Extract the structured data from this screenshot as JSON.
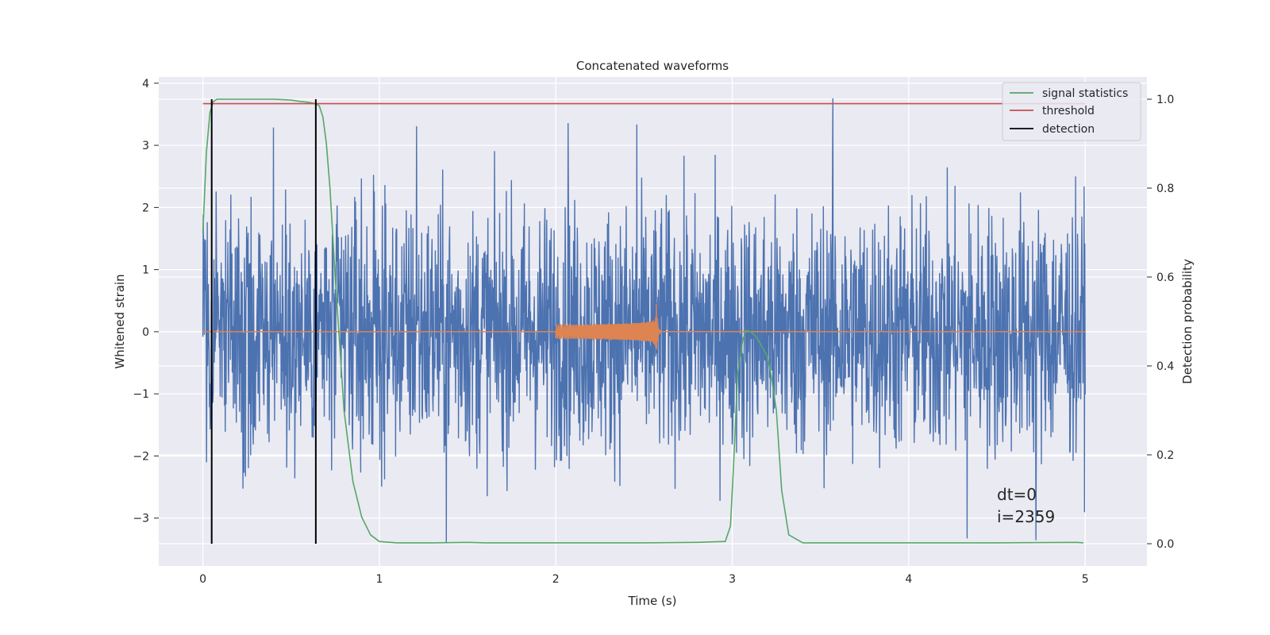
{
  "chart_data": {
    "type": "line",
    "title": "Concatenated waveforms",
    "xlabel": "Time (s)",
    "ylabel": "Whitened strain",
    "y2label": "Detection probability",
    "xlim": [
      -0.25,
      5.35
    ],
    "ylim": [
      -3.77,
      4.1
    ],
    "y2lim": [
      -0.05,
      1.05
    ],
    "xticks": [
      0,
      1,
      2,
      3,
      4,
      5
    ],
    "yticks": [
      -3,
      -2,
      -1,
      0,
      1,
      2,
      3,
      4
    ],
    "y2ticks": [
      0.0,
      0.2,
      0.4,
      0.6,
      0.8,
      1.0
    ],
    "grid": true,
    "legend_position": "top-right",
    "colors": {
      "plot_background": "#eaeaf2",
      "grid": "#ffffff",
      "strain": "#4c72b0",
      "template": "#dd8452",
      "signal": "#55a868",
      "threshold": "#c44e52",
      "detection": "#000000"
    },
    "strain": {
      "name": "",
      "x_range": [
        0.0,
        5.0
      ],
      "typical_amplitude": 1.0,
      "visible_peaks": [
        {
          "x": 0.4,
          "y": 3.28
        },
        {
          "x": 1.21,
          "y": 3.3
        },
        {
          "x": 1.38,
          "y": -3.4
        },
        {
          "x": 2.07,
          "y": 3.35
        },
        {
          "x": 2.46,
          "y": 3.33
        },
        {
          "x": 3.57,
          "y": 3.75
        },
        {
          "x": 4.33,
          "y": -3.32
        },
        {
          "x": 4.72,
          "y": -3.35
        }
      ]
    },
    "template": {
      "name": "",
      "x_range": [
        2.0,
        2.6
      ],
      "peak_time": 2.57,
      "peak_amplitude": 0.45
    },
    "series": [
      {
        "name": "signal statistics",
        "axis": "right",
        "x": [
          0.0,
          0.02,
          0.04,
          0.06,
          0.08,
          0.1,
          0.2,
          0.4,
          0.5,
          0.55,
          0.6,
          0.64,
          0.66,
          0.68,
          0.7,
          0.72,
          0.75,
          0.78,
          0.8,
          0.85,
          0.9,
          0.95,
          1.0,
          1.1,
          1.3,
          1.5,
          1.6,
          2.0,
          2.5,
          2.8,
          2.96,
          2.99,
          3.01,
          3.03,
          3.06,
          3.08,
          3.1,
          3.13,
          3.16,
          3.2,
          3.22,
          3.25,
          3.28,
          3.32,
          3.4,
          4.0,
          4.5,
          4.95,
          4.99
        ],
        "y": [
          0.7,
          0.88,
          0.97,
          0.995,
          1.0,
          1.0,
          1.0,
          1.0,
          0.998,
          0.995,
          0.993,
          0.99,
          0.985,
          0.96,
          0.9,
          0.8,
          0.6,
          0.42,
          0.3,
          0.14,
          0.06,
          0.02,
          0.005,
          0.002,
          0.002,
          0.003,
          0.002,
          0.002,
          0.002,
          0.003,
          0.005,
          0.04,
          0.2,
          0.38,
          0.46,
          0.48,
          0.478,
          0.468,
          0.45,
          0.42,
          0.38,
          0.3,
          0.12,
          0.02,
          0.002,
          0.002,
          0.002,
          0.003,
          0.002
        ]
      },
      {
        "name": "threshold",
        "axis": "right",
        "x": [
          0.0,
          5.0
        ],
        "y": [
          0.99,
          0.99
        ]
      }
    ],
    "detections": {
      "name": "detection",
      "x": [
        0.05,
        0.64
      ],
      "y_range": [
        0.0,
        1.0
      ]
    },
    "annotations": [
      "dt=0",
      "i=2359"
    ]
  }
}
